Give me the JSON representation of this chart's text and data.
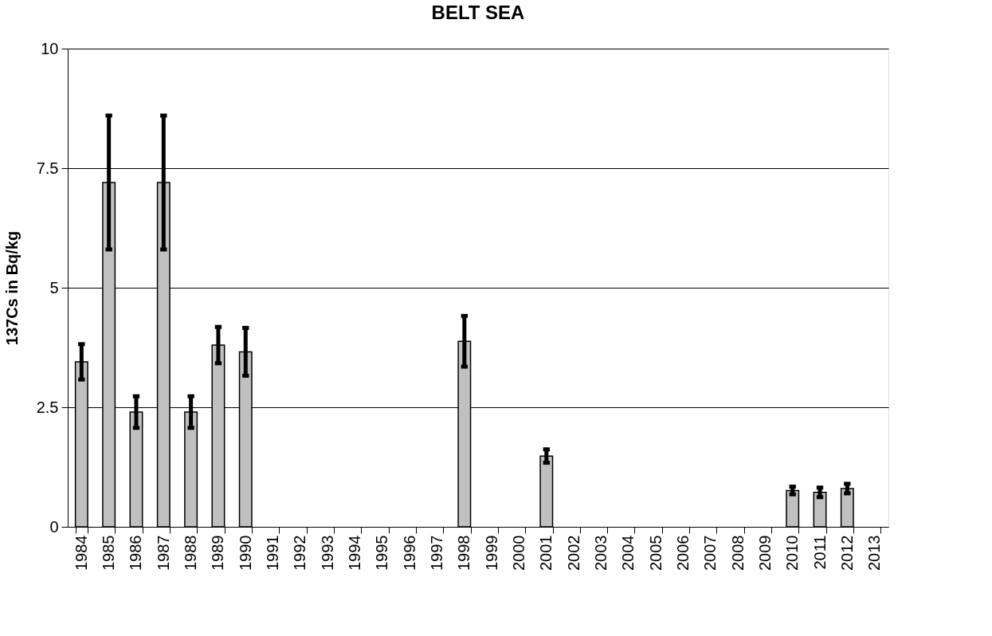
{
  "chart_data": {
    "type": "bar",
    "title": "BELT SEA",
    "ylabel": "137Cs in Bq/kg",
    "categories": [
      "1984",
      "1985",
      "1986",
      "1987",
      "1988",
      "1989",
      "1990",
      "1991",
      "1992",
      "1993",
      "1994",
      "1995",
      "1996",
      "1997",
      "1998",
      "1999",
      "2000",
      "2001",
      "2002",
      "2003",
      "2004",
      "2005",
      "2006",
      "2007",
      "2008",
      "2009",
      "2010",
      "2011",
      "2012",
      "2013"
    ],
    "values": [
      3.45,
      7.2,
      2.4,
      7.2,
      2.4,
      3.8,
      3.66,
      null,
      null,
      null,
      null,
      null,
      null,
      null,
      3.88,
      null,
      null,
      1.48,
      null,
      null,
      null,
      null,
      null,
      null,
      null,
      null,
      0.76,
      0.72,
      0.8,
      null
    ],
    "errors": [
      0.37,
      1.4,
      0.33,
      1.4,
      0.33,
      0.38,
      0.5,
      null,
      null,
      null,
      null,
      null,
      null,
      null,
      0.53,
      null,
      null,
      0.14,
      null,
      null,
      null,
      null,
      null,
      null,
      null,
      null,
      0.08,
      0.1,
      0.1,
      null
    ],
    "color": "#c0c0c0",
    "ylim": [
      0,
      10
    ],
    "yticks": [
      0,
      2.5,
      5,
      7.5,
      10
    ],
    "grid": "y"
  }
}
